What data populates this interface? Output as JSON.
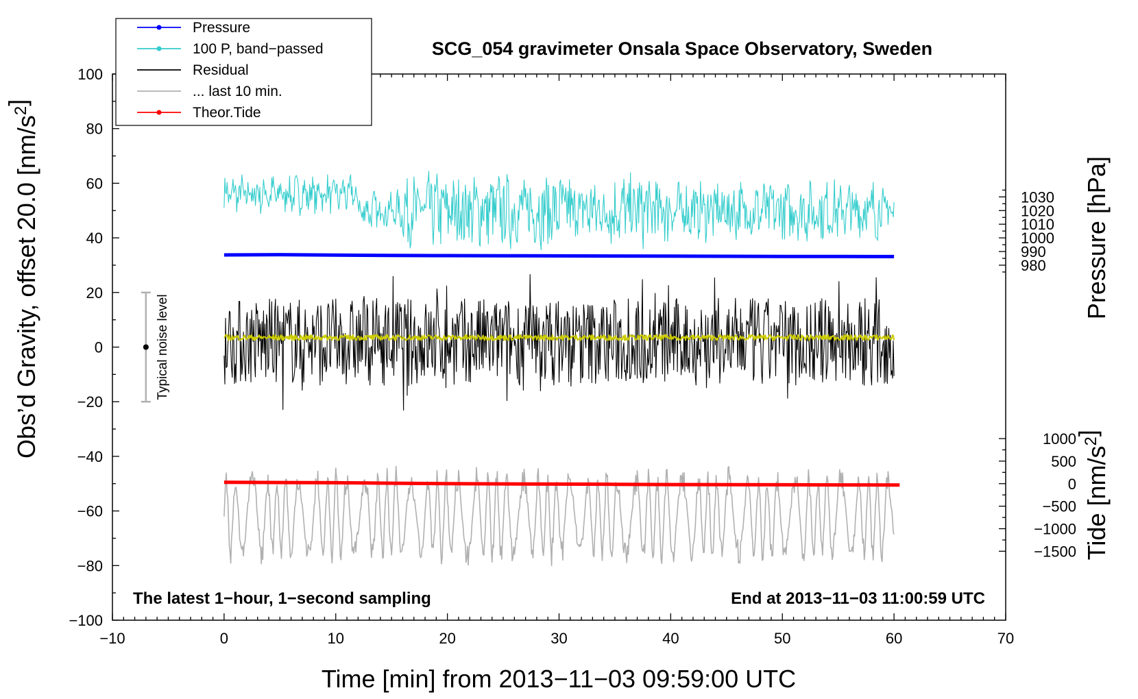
{
  "chart_data": {
    "type": "line",
    "title": "SCG_054 gravimeter Onsala Space Observatory, Sweden",
    "xlabel": "Time [min] from 2013−11−03 09:59:00 UTC",
    "ylabel": "Obs’d Gravity, offset 20.0 [nm/s²]",
    "ylabel_right_top": "Pressure [hPa]",
    "ylabel_right_bottom": "Tide [nm/s²]",
    "xlim": [
      -10,
      70
    ],
    "ylim": [
      -100,
      100
    ],
    "xticks": [
      {
        "value": -10,
        "label": "−10"
      },
      {
        "value": 0,
        "label": "0"
      },
      {
        "value": 10,
        "label": "10"
      },
      {
        "value": 20,
        "label": "20"
      },
      {
        "value": 30,
        "label": "30"
      },
      {
        "value": 40,
        "label": "40"
      },
      {
        "value": 50,
        "label": "50"
      },
      {
        "value": 60,
        "label": "60"
      },
      {
        "value": 70,
        "label": "70"
      }
    ],
    "yticks": [
      {
        "value": 100,
        "label": "100"
      },
      {
        "value": 80,
        "label": "80"
      },
      {
        "value": 60,
        "label": "60"
      },
      {
        "value": 40,
        "label": "40"
      },
      {
        "value": 20,
        "label": "20"
      },
      {
        "value": 0,
        "label": "0"
      },
      {
        "value": -20,
        "label": "−20"
      },
      {
        "value": -40,
        "label": "−40"
      },
      {
        "value": -60,
        "label": "−60"
      },
      {
        "value": -80,
        "label": "−80"
      },
      {
        "value": -100,
        "label": "−100"
      }
    ],
    "pressure_axis": {
      "note": "1 hPa = 0.5 nm/s² on the gravity scale; 1000 hPa at gravity 40",
      "ref_hpa": 1000,
      "ref_gravity": 40,
      "gravity_per_hpa": 0.5,
      "ticks": [
        {
          "value": 1030,
          "label": "1030"
        },
        {
          "value": 1020,
          "label": "1020"
        },
        {
          "value": 1010,
          "label": "1010"
        },
        {
          "value": 1000,
          "label": "1000"
        },
        {
          "value": 990,
          "label": "990"
        },
        {
          "value": 980,
          "label": "980"
        }
      ]
    },
    "tide_axis": {
      "note": "100 nm/s² tide = 1.65 nm/s² on the gravity scale; 0 tide at gravity -50",
      "ref_tide": 0,
      "ref_gravity": -50,
      "gravity_per_tide": 0.0165,
      "ticks": [
        {
          "value": 1000,
          "label": "1000"
        },
        {
          "value": 500,
          "label": "500"
        },
        {
          "value": 0,
          "label": "0"
        },
        {
          "value": -500,
          "label": "−500"
        },
        {
          "value": -1000,
          "label": "−1000"
        },
        {
          "value": -1500,
          "label": "−1500"
        }
      ]
    },
    "legend": {
      "position": "top-left",
      "entries": [
        {
          "label": "Pressure",
          "color": "#0000ff",
          "marker": "dot"
        },
        {
          "label": "100 P, band−passed",
          "color": "#33cccc",
          "marker": "dot"
        },
        {
          "label": "Residual",
          "color": "#000000",
          "marker": "none"
        },
        {
          "label": "... last 10 min.",
          "color": "#b0b0b0",
          "marker": "none"
        },
        {
          "label": "Theor.Tide",
          "color": "#ff0000",
          "marker": "dot"
        }
      ]
    },
    "series": [
      {
        "name": "Pressure",
        "axis": "pressure",
        "color": "#0000ff",
        "x": [
          0,
          5,
          10,
          15,
          20,
          25,
          30,
          35,
          40,
          45,
          50,
          55,
          60
        ],
        "values": [
          987.5,
          987.7,
          987.4,
          987.1,
          987.0,
          986.9,
          986.8,
          986.7,
          986.6,
          986.5,
          986.4,
          986.4,
          986.3
        ]
      },
      {
        "name": "Theor.Tide",
        "axis": "tide",
        "color": "#ff0000",
        "x": [
          0,
          5,
          10,
          15,
          20,
          25,
          30,
          35,
          40,
          45,
          50,
          55,
          60.5
        ],
        "values": [
          30,
          25,
          20,
          10,
          0,
          -5,
          -10,
          -15,
          -20,
          -22,
          -25,
          -28,
          -30
        ]
      },
      {
        "name": "100 P, band−passed",
        "axis": "gravity",
        "color": "#33cccc",
        "style": "noise",
        "x_range": [
          0,
          60
        ],
        "center": 50,
        "amplitude": 9
      },
      {
        "name": "Residual",
        "axis": "gravity",
        "color": "#000000",
        "style": "noise",
        "x_range": [
          0,
          60
        ],
        "center": 2,
        "amplitude": 16
      },
      {
        "name": "Residual smoothed",
        "axis": "gravity",
        "color": "#cccc00",
        "style": "noise",
        "x_range": [
          0,
          60
        ],
        "center": 3.5,
        "amplitude": 1
      },
      {
        "name": "... last 10 min.",
        "axis": "gravity",
        "color": "#b0b0b0",
        "style": "noise",
        "x_range": [
          0,
          60
        ],
        "center": -62,
        "amplitude": 16
      }
    ],
    "noise_bar": {
      "label": "Typical noise level",
      "x": -7,
      "center": 0,
      "low": -20,
      "high": 20
    },
    "annotations": {
      "left": "The latest 1−hour, 1−second sampling",
      "right": "End at 2013−11−03 11:00:59 UTC"
    }
  }
}
